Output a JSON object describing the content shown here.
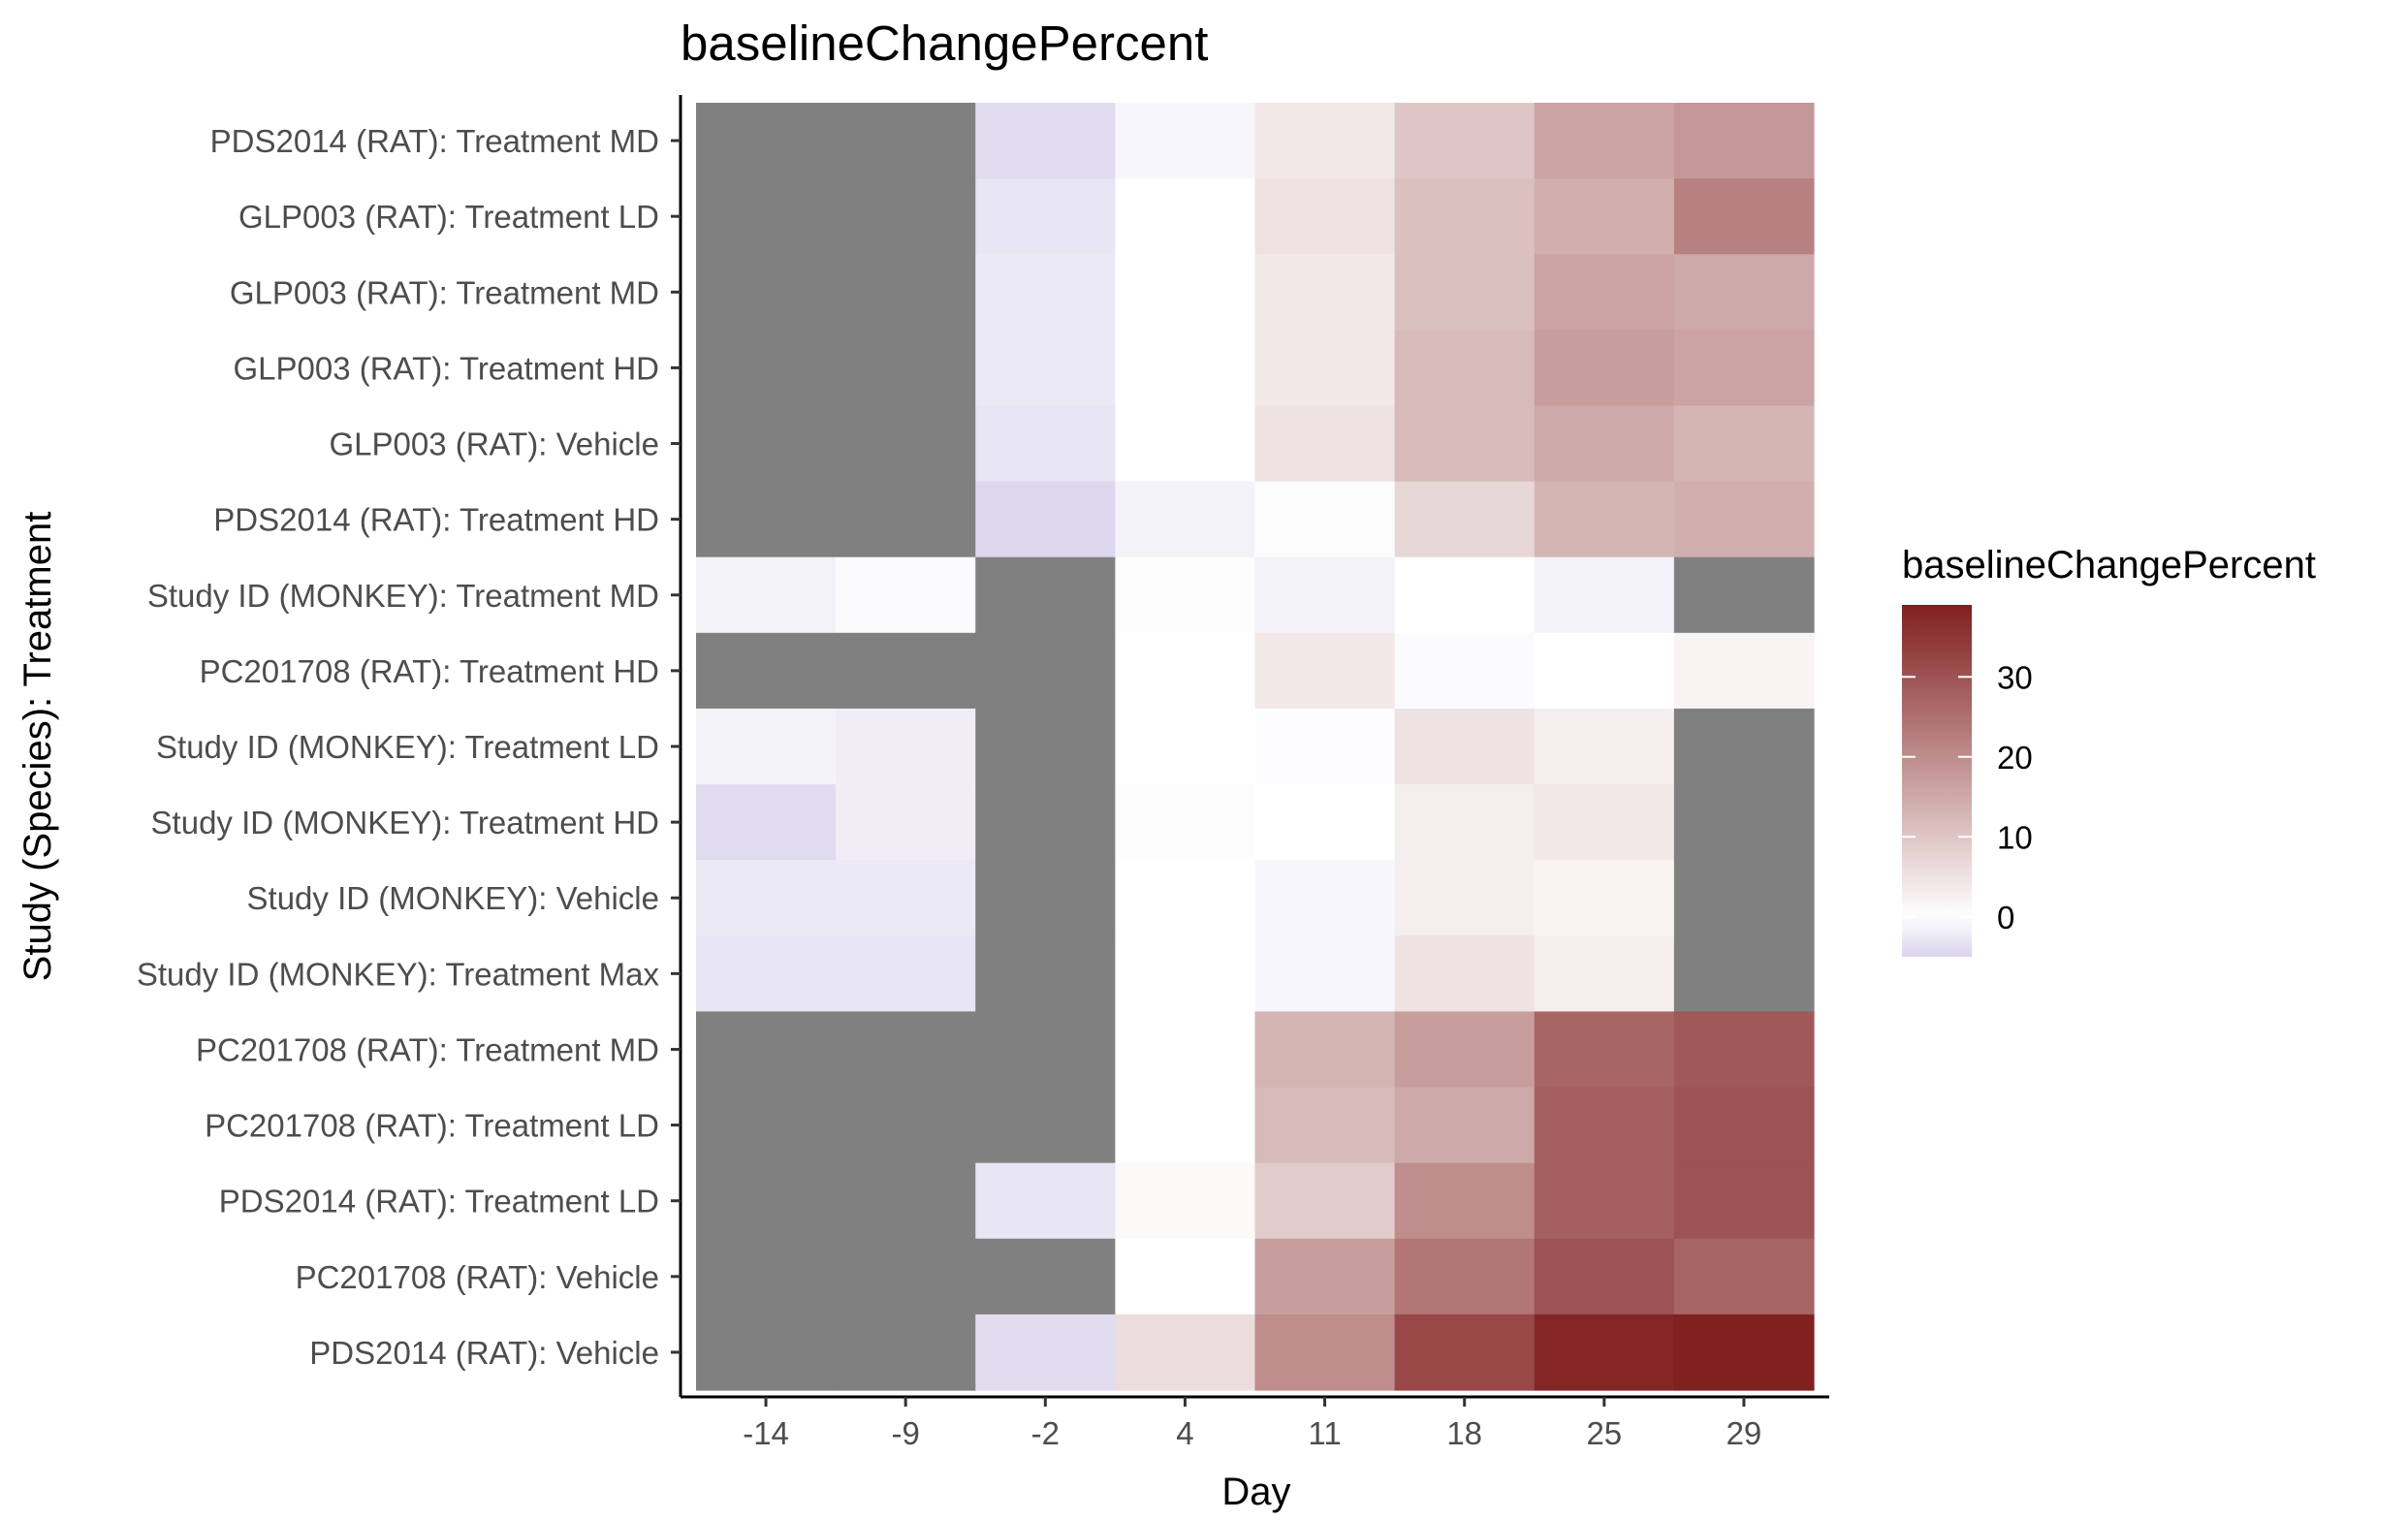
{
  "chart_data": {
    "type": "heatmap",
    "title": "baselineChangePercent",
    "xlabel": "Day",
    "ylabel": "Study (Species): Treatment",
    "x_categories": [
      "-14",
      "-9",
      "-2",
      "4",
      "11",
      "18",
      "25",
      "29"
    ],
    "y_categories": [
      "PDS2014 (RAT): Treatment MD",
      "GLP003 (RAT): Treatment LD",
      "GLP003 (RAT): Treatment MD",
      "GLP003 (RAT): Treatment HD",
      "GLP003 (RAT): Vehicle",
      "PDS2014 (RAT): Treatment HD",
      "Study ID (MONKEY): Treatment MD",
      "PC201708 (RAT): Treatment HD",
      "Study ID (MONKEY): Treatment LD",
      "Study ID (MONKEY): Treatment HD",
      "Study ID (MONKEY): Vehicle",
      "Study ID (MONKEY): Treatment Max",
      "PC201708 (RAT): Treatment MD",
      "PC201708 (RAT): Treatment LD",
      "PDS2014 (RAT): Treatment LD",
      "PC201708 (RAT): Vehicle",
      "PDS2014 (RAT): Vehicle"
    ],
    "values": [
      [
        null,
        null,
        -4,
        -1,
        4,
        10,
        16,
        18
      ],
      [
        null,
        null,
        -3,
        0,
        5,
        11,
        14,
        22
      ],
      [
        null,
        null,
        -2.5,
        0,
        4,
        11,
        16,
        15
      ],
      [
        null,
        null,
        -2.5,
        0,
        4,
        12,
        17,
        16
      ],
      [
        null,
        null,
        -3,
        0,
        5,
        12,
        15,
        13
      ],
      [
        null,
        null,
        -4.5,
        -1.5,
        0.5,
        7,
        13,
        14
      ],
      [
        -1.5,
        -0.5,
        null,
        0.3,
        -1.5,
        0,
        -1.5,
        null
      ],
      [
        null,
        null,
        null,
        0,
        4,
        -0.5,
        0,
        2
      ],
      [
        -1.5,
        -2,
        null,
        0,
        -0.3,
        5,
        3,
        null
      ],
      [
        -4,
        -2,
        null,
        0.3,
        0,
        3,
        4,
        null
      ],
      [
        -2.5,
        -2.5,
        null,
        0,
        -1,
        3,
        2,
        null
      ],
      [
        -3,
        -3,
        null,
        0,
        -1,
        5,
        3,
        null
      ],
      [
        null,
        null,
        null,
        0,
        13,
        17,
        27,
        29
      ],
      [
        null,
        null,
        null,
        0,
        12,
        15,
        28,
        30
      ],
      [
        null,
        null,
        -3,
        1,
        9,
        20,
        28,
        30
      ],
      [
        null,
        null,
        null,
        0,
        17,
        24,
        30,
        27
      ],
      [
        null,
        null,
        -4,
        6,
        20,
        32,
        38,
        42
      ]
    ],
    "color_scale": {
      "min": -5,
      "max": 39,
      "low_color": "#d9d3ec",
      "mid_color": "#ffffff",
      "mid_value": 0,
      "high_color": "#80201f",
      "na_color": "#808080"
    },
    "legend": {
      "title": "baselineChangePercent",
      "placement": "right",
      "ticks": [
        0,
        10,
        20,
        30
      ]
    },
    "grid": false
  }
}
